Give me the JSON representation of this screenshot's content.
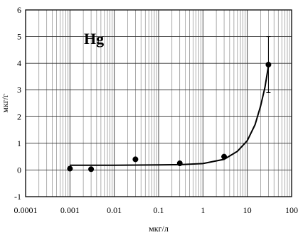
{
  "chart_data": {
    "type": "scatter",
    "title": "",
    "panel_label": "Hg",
    "xlabel": "мкг/л",
    "ylabel": "мкг/г",
    "x_scale": "log",
    "xlim": [
      0.0001,
      100
    ],
    "ylim": [
      -1,
      6
    ],
    "x_tick_labels": [
      "0.0001",
      "0.001",
      "0.01",
      "0.1",
      "1",
      "10",
      "100"
    ],
    "y_tick_labels": [
      "-1",
      "0",
      "1",
      "2",
      "3",
      "4",
      "5",
      "6"
    ],
    "grid": true,
    "series": [
      {
        "points": [
          {
            "x": 0.001,
            "y": 0.05
          },
          {
            "x": 0.003,
            "y": 0.03
          },
          {
            "x": 0.03,
            "y": 0.4
          },
          {
            "x": 0.3,
            "y": 0.25
          },
          {
            "x": 3,
            "y": 0.5
          },
          {
            "x": 30,
            "y": 3.95
          }
        ],
        "error_bars": [
          {
            "x": 30,
            "low": 2.9,
            "high": 5.0
          }
        ]
      }
    ],
    "fit_curve": [
      {
        "x": 0.001,
        "y": 0.18
      },
      {
        "x": 0.01,
        "y": 0.18
      },
      {
        "x": 0.1,
        "y": 0.19
      },
      {
        "x": 0.3,
        "y": 0.2
      },
      {
        "x": 1,
        "y": 0.24
      },
      {
        "x": 3,
        "y": 0.4
      },
      {
        "x": 6,
        "y": 0.7
      },
      {
        "x": 10,
        "y": 1.1
      },
      {
        "x": 15,
        "y": 1.7
      },
      {
        "x": 20,
        "y": 2.4
      },
      {
        "x": 25,
        "y": 3.1
      },
      {
        "x": 30,
        "y": 3.9
      }
    ]
  }
}
